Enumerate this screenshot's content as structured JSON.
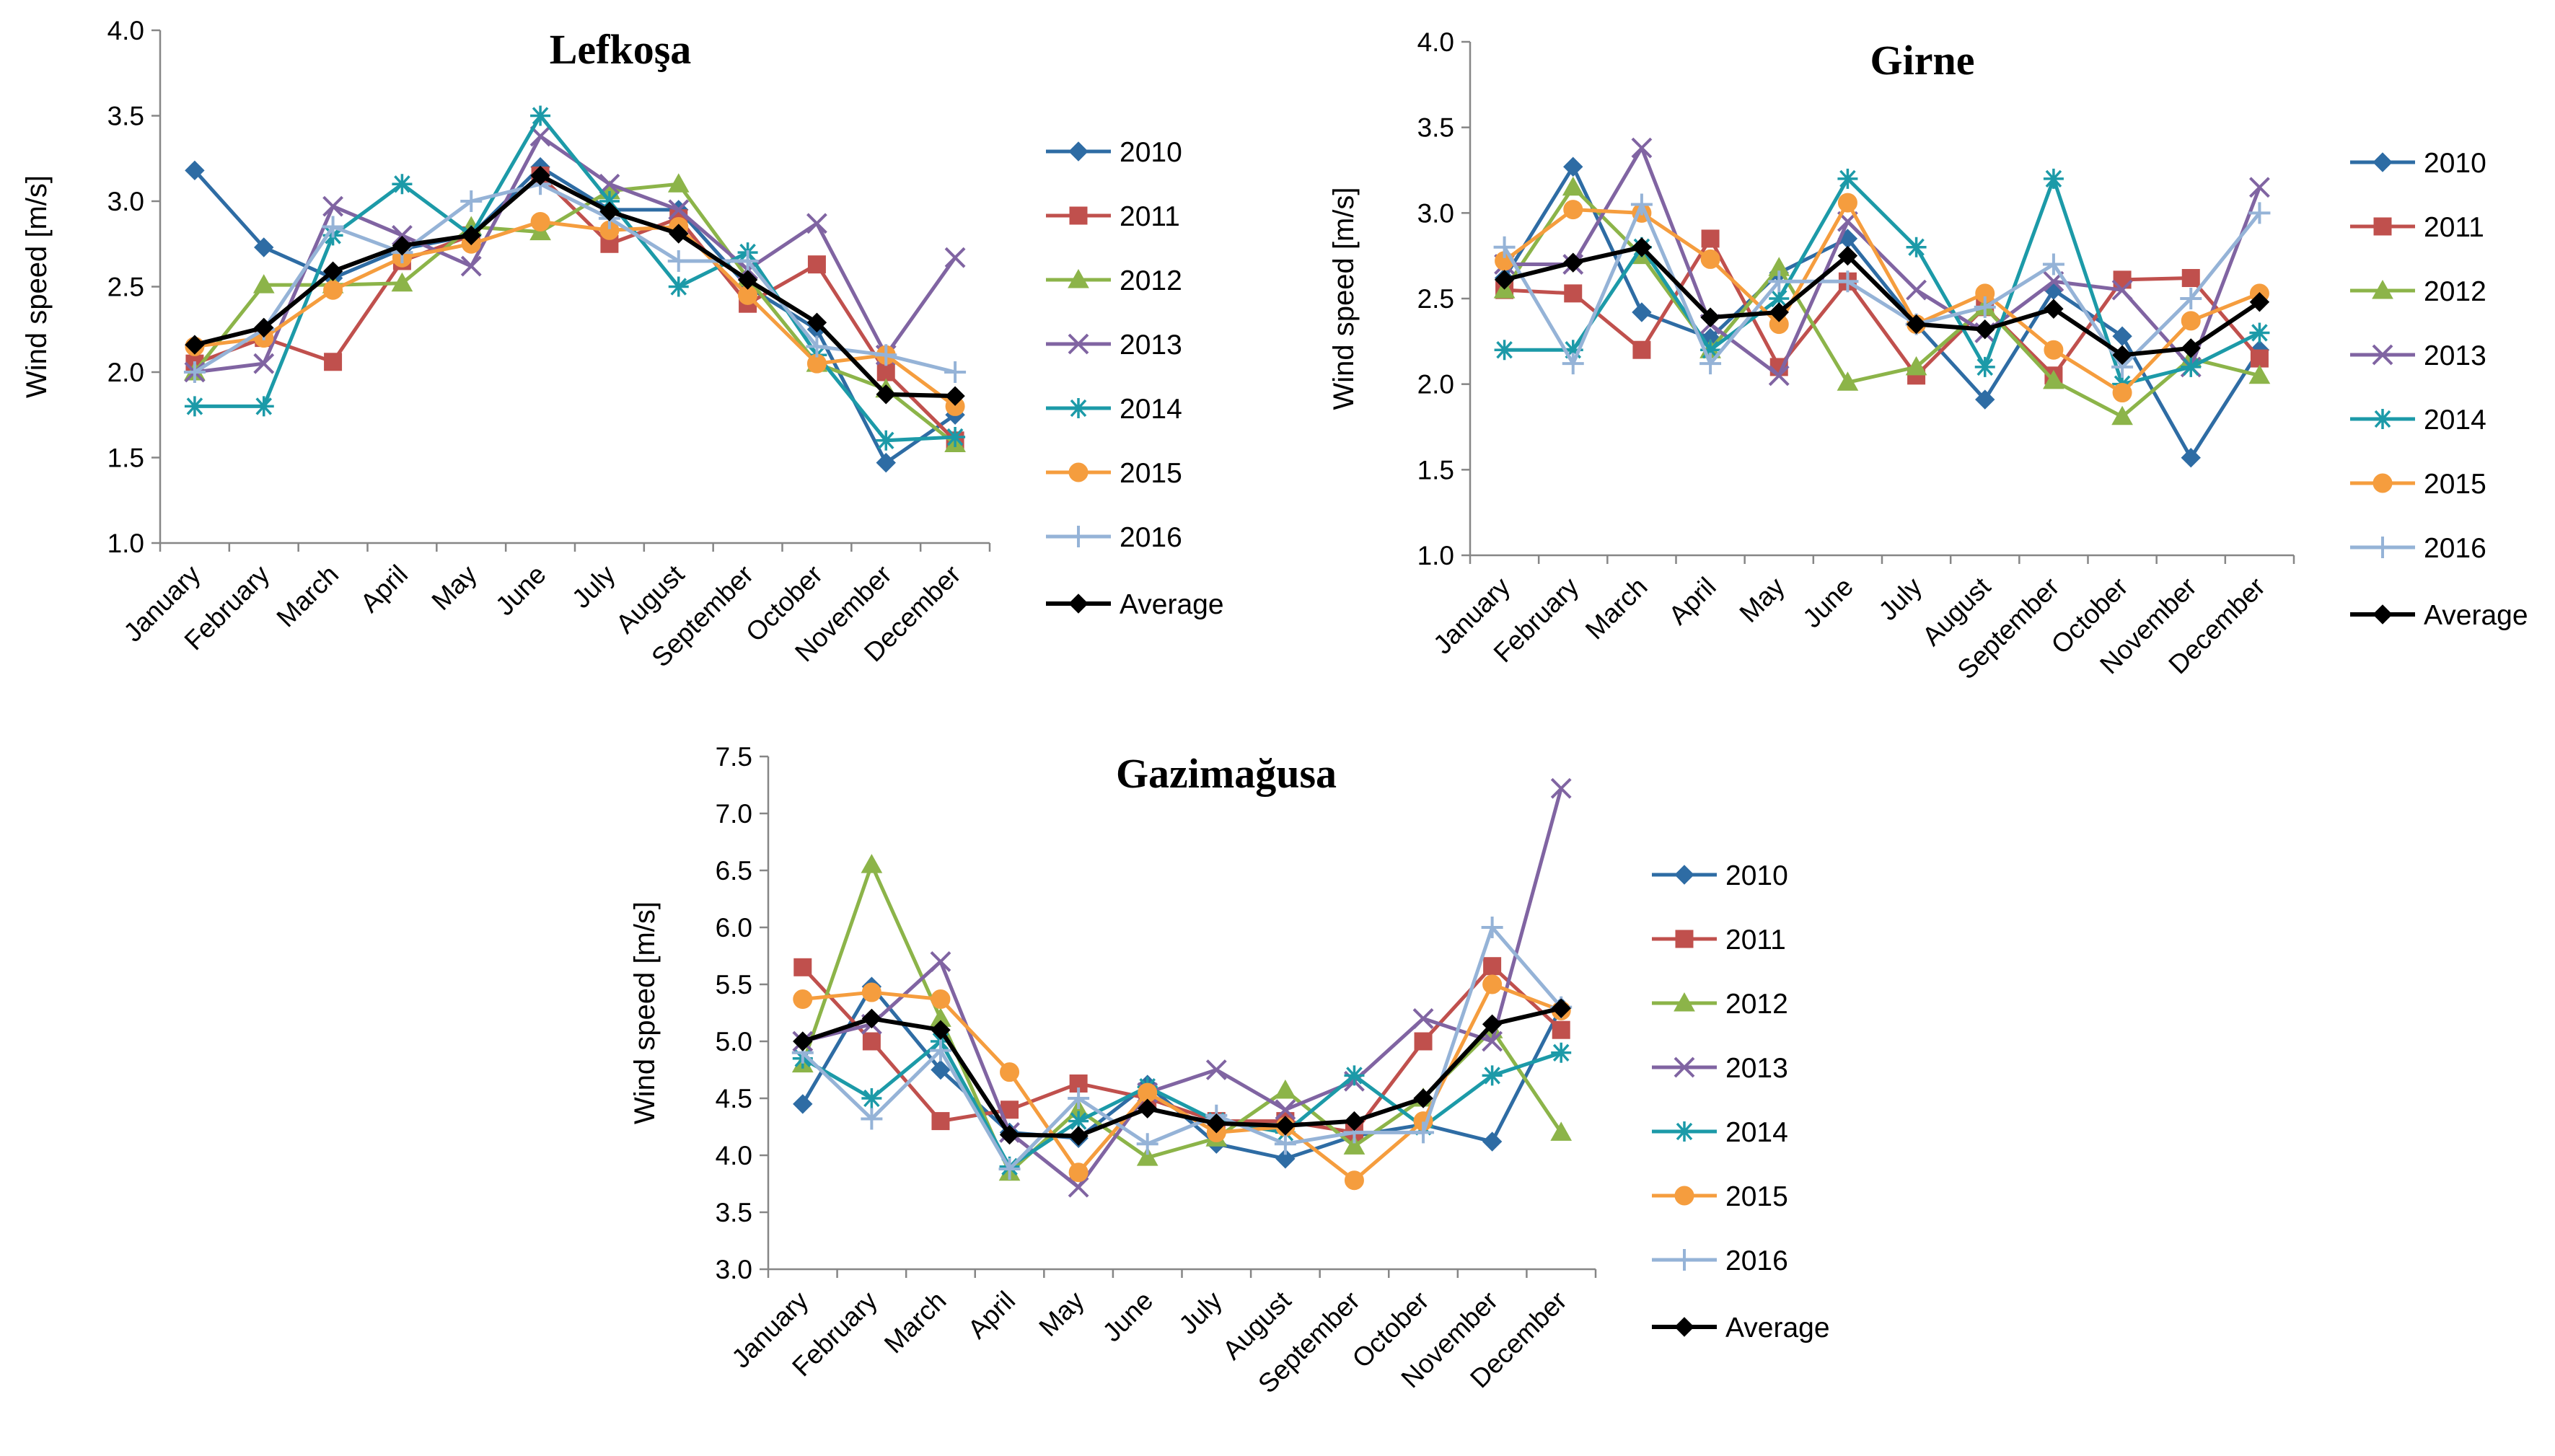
{
  "chart_data": [
    {
      "type": "line",
      "title": "Lefkoşa",
      "xlabel": "",
      "ylabel": "Wind speed [m/s]",
      "ylim": [
        1.0,
        4.0
      ],
      "yticks": [
        "1.0",
        "1.5",
        "2.0",
        "2.5",
        "3.0",
        "3.5",
        "4.0"
      ],
      "categories": [
        "January",
        "February",
        "March",
        "April",
        "May",
        "June",
        "July",
        "August",
        "September",
        "October",
        "November",
        "December"
      ],
      "legend_position": "right",
      "series": [
        {
          "name": "2010",
          "color": "#2E6CA4",
          "marker": "diamond",
          "values": [
            3.18,
            2.73,
            2.55,
            2.72,
            2.8,
            3.2,
            2.95,
            2.95,
            2.5,
            2.25,
            1.47,
            1.75
          ]
        },
        {
          "name": "2011",
          "color": "#C0504D",
          "marker": "square",
          "values": [
            2.05,
            2.2,
            2.06,
            2.65,
            2.8,
            3.15,
            2.75,
            2.9,
            2.4,
            2.63,
            2.0,
            1.6
          ]
        },
        {
          "name": "2012",
          "color": "#8CB449",
          "marker": "triangle",
          "values": [
            2.0,
            2.51,
            2.51,
            2.52,
            2.85,
            2.82,
            3.06,
            3.1,
            2.55,
            2.05,
            1.9,
            1.58
          ]
        },
        {
          "name": "2013",
          "color": "#8064A2",
          "marker": "x",
          "values": [
            2.0,
            2.05,
            2.97,
            2.8,
            2.62,
            3.38,
            3.1,
            2.95,
            2.6,
            2.87,
            2.1,
            2.67
          ]
        },
        {
          "name": "2014",
          "color": "#1C9AA8",
          "marker": "star",
          "values": [
            1.8,
            1.8,
            2.8,
            3.1,
            2.8,
            3.5,
            3.0,
            2.5,
            2.7,
            2.1,
            1.6,
            1.62
          ]
        },
        {
          "name": "2015",
          "color": "#F59D3E",
          "marker": "circle",
          "values": [
            2.15,
            2.2,
            2.48,
            2.67,
            2.75,
            2.88,
            2.83,
            2.85,
            2.45,
            2.05,
            2.1,
            1.8
          ]
        },
        {
          "name": "2016",
          "color": "#95B3D7",
          "marker": "plus",
          "values": [
            2.0,
            2.25,
            2.85,
            2.7,
            3.0,
            3.1,
            2.9,
            2.65,
            2.65,
            2.15,
            2.1,
            2.0
          ]
        },
        {
          "name": "Average",
          "color": "#000000",
          "marker": "diamond",
          "values": [
            2.16,
            2.26,
            2.59,
            2.74,
            2.8,
            3.15,
            2.94,
            2.81,
            2.54,
            2.29,
            1.87,
            1.86
          ]
        }
      ]
    },
    {
      "type": "line",
      "title": "Girne",
      "xlabel": "",
      "ylabel": "Wind speed [m/s]",
      "ylim": [
        1.0,
        4.0
      ],
      "yticks": [
        "1.0",
        "1.5",
        "2.0",
        "2.5",
        "3.0",
        "3.5",
        "4.0"
      ],
      "categories": [
        "January",
        "February",
        "March",
        "April",
        "May",
        "June",
        "July",
        "August",
        "September",
        "October",
        "November",
        "December"
      ],
      "legend_position": "right",
      "series": [
        {
          "name": "2010",
          "color": "#2E6CA4",
          "marker": "diamond",
          "values": [
            2.62,
            3.27,
            2.42,
            2.27,
            2.65,
            2.85,
            2.35,
            1.91,
            2.55,
            2.28,
            1.57,
            2.2
          ]
        },
        {
          "name": "2011",
          "color": "#C0504D",
          "marker": "square",
          "values": [
            2.55,
            2.53,
            2.2,
            2.85,
            2.1,
            2.6,
            2.05,
            2.45,
            2.05,
            2.61,
            2.62,
            2.15
          ]
        },
        {
          "name": "2012",
          "color": "#8CB449",
          "marker": "triangle",
          "values": [
            2.55,
            3.15,
            2.75,
            2.2,
            2.68,
            2.01,
            2.1,
            2.45,
            2.02,
            1.81,
            2.15,
            2.05
          ]
        },
        {
          "name": "2013",
          "color": "#8064A2",
          "marker": "x",
          "values": [
            2.7,
            2.7,
            3.38,
            2.35,
            2.05,
            2.95,
            2.55,
            2.3,
            2.6,
            2.55,
            2.1,
            3.15
          ]
        },
        {
          "name": "2014",
          "color": "#1C9AA8",
          "marker": "star",
          "values": [
            2.2,
            2.2,
            2.8,
            2.2,
            2.5,
            3.2,
            2.8,
            2.1,
            3.2,
            2.0,
            2.1,
            2.3
          ]
        },
        {
          "name": "2015",
          "color": "#F59D3E",
          "marker": "circle",
          "values": [
            2.72,
            3.02,
            3.0,
            2.73,
            2.35,
            3.06,
            2.35,
            2.53,
            2.2,
            1.95,
            2.37,
            2.53
          ]
        },
        {
          "name": "2016",
          "color": "#95B3D7",
          "marker": "plus",
          "values": [
            2.8,
            2.12,
            3.05,
            2.12,
            2.6,
            2.6,
            2.35,
            2.45,
            2.7,
            2.1,
            2.5,
            3.0
          ]
        },
        {
          "name": "Average",
          "color": "#000000",
          "marker": "diamond",
          "values": [
            2.61,
            2.71,
            2.8,
            2.39,
            2.42,
            2.75,
            2.35,
            2.32,
            2.44,
            2.17,
            2.21,
            2.48
          ]
        }
      ]
    },
    {
      "type": "line",
      "title": "Gazimağusa",
      "xlabel": "",
      "ylabel": "Wind speed [m/s]",
      "ylim": [
        3.0,
        7.5
      ],
      "yticks": [
        "3.0",
        "3.5",
        "4.0",
        "4.5",
        "5.0",
        "5.5",
        "6.0",
        "6.5",
        "7.0",
        "7.5"
      ],
      "categories": [
        "January",
        "February",
        "March",
        "April",
        "May",
        "June",
        "July",
        "August",
        "September",
        "October",
        "November",
        "December"
      ],
      "legend_position": "right",
      "series": [
        {
          "name": "2010",
          "color": "#2E6CA4",
          "marker": "diamond",
          "values": [
            4.45,
            5.48,
            4.75,
            4.2,
            4.15,
            4.62,
            4.1,
            3.97,
            4.17,
            4.27,
            4.12,
            5.3
          ]
        },
        {
          "name": "2011",
          "color": "#C0504D",
          "marker": "square",
          "values": [
            5.65,
            5.0,
            4.3,
            4.4,
            4.63,
            4.5,
            4.3,
            4.3,
            4.2,
            5.0,
            5.66,
            5.1
          ]
        },
        {
          "name": "2012",
          "color": "#8CB449",
          "marker": "triangle",
          "values": [
            4.8,
            6.55,
            5.2,
            3.85,
            4.4,
            3.98,
            4.15,
            4.57,
            4.08,
            4.5,
            5.1,
            4.2
          ]
        },
        {
          "name": "2013",
          "color": "#8064A2",
          "marker": "x",
          "values": [
            5.0,
            5.15,
            5.7,
            4.2,
            3.72,
            4.55,
            4.75,
            4.4,
            4.65,
            5.2,
            5.0,
            7.22
          ]
        },
        {
          "name": "2014",
          "color": "#1C9AA8",
          "marker": "star",
          "values": [
            4.85,
            4.5,
            5.0,
            3.9,
            4.3,
            4.6,
            4.3,
            4.2,
            4.7,
            4.25,
            4.7,
            4.9
          ]
        },
        {
          "name": "2015",
          "color": "#F59D3E",
          "marker": "circle",
          "values": [
            5.37,
            5.43,
            5.37,
            4.73,
            3.85,
            4.55,
            4.2,
            4.25,
            3.78,
            4.3,
            5.5,
            5.27
          ]
        },
        {
          "name": "2016",
          "color": "#95B3D7",
          "marker": "plus",
          "values": [
            4.9,
            4.32,
            4.92,
            3.88,
            4.5,
            4.1,
            4.35,
            4.1,
            4.2,
            4.2,
            6.0,
            5.3
          ]
        },
        {
          "name": "Average",
          "color": "#000000",
          "marker": "diamond",
          "values": [
            5.0,
            5.2,
            5.1,
            4.18,
            4.17,
            4.41,
            4.28,
            4.26,
            4.3,
            4.5,
            5.15,
            5.29
          ]
        }
      ]
    }
  ]
}
